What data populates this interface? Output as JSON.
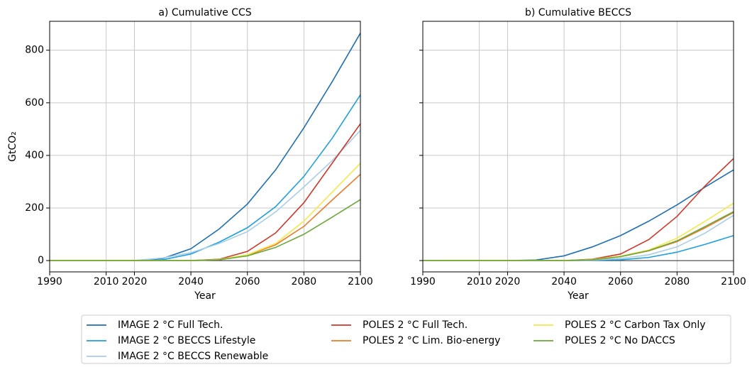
{
  "chart_data": [
    {
      "type": "line",
      "title": "a) Cumulative CCS",
      "x_label": "Year",
      "y_label": "GtCO₂",
      "x": [
        1990,
        2000,
        2010,
        2020,
        2030,
        2040,
        2050,
        2060,
        2070,
        2080,
        2090,
        2100
      ],
      "xlim": [
        1990,
        2100
      ],
      "xticks": [
        1990,
        2010,
        2020,
        2040,
        2060,
        2080,
        2100
      ],
      "ylim": [
        -43,
        910
      ],
      "yticks": [
        0,
        200,
        400,
        600,
        800
      ],
      "grid": true,
      "hline": 0,
      "series": [
        {
          "name": "IMAGE 2 °C Full Tech.",
          "color": "#1f6fb4",
          "values": [
            0,
            0,
            0,
            0,
            8,
            45,
            120,
            215,
            345,
            505,
            680,
            865
          ]
        },
        {
          "name": "IMAGE 2 °C BECCS Lifestyle",
          "color": "#1ea0e0",
          "values": [
            0,
            0,
            0,
            0,
            3,
            25,
            70,
            125,
            205,
            320,
            465,
            630
          ]
        },
        {
          "name": "IMAGE 2 °C BECCS Renewable",
          "color": "#a8cde8",
          "values": [
            0,
            0,
            0,
            0,
            10,
            30,
            65,
            110,
            185,
            280,
            380,
            495
          ]
        },
        {
          "name": "POLES 2 °C Full Tech.",
          "color": "#d03628",
          "values": [
            0,
            0,
            0,
            0,
            0,
            0,
            5,
            35,
            105,
            220,
            370,
            520
          ]
        },
        {
          "name": "POLES 2 °C Lim. Bio-energy",
          "color": "#ec7a2a",
          "values": [
            0,
            0,
            0,
            0,
            0,
            0,
            3,
            20,
            60,
            130,
            230,
            328
          ]
        },
        {
          "name": "POLES 2 °C Carbon Tax Only",
          "color": "#f5e84a",
          "values": [
            0,
            0,
            0,
            0,
            0,
            0,
            4,
            22,
            65,
            150,
            260,
            370
          ]
        },
        {
          "name": "POLES 2 °C No DACCS",
          "color": "#6aa83a",
          "values": [
            0,
            0,
            0,
            0,
            0,
            0,
            3,
            18,
            50,
            100,
            165,
            232
          ]
        }
      ]
    },
    {
      "type": "line",
      "title": "b) Cumulative BECCS",
      "x_label": "Year",
      "x": [
        1990,
        2000,
        2010,
        2020,
        2030,
        2040,
        2050,
        2060,
        2070,
        2080,
        2090,
        2100
      ],
      "xlim": [
        1990,
        2100
      ],
      "xticks": [
        1990,
        2010,
        2020,
        2040,
        2060,
        2080,
        2100
      ],
      "ylim": [
        -43,
        910
      ],
      "yticks": [
        0,
        200,
        400,
        600,
        800
      ],
      "grid": true,
      "hline": 0,
      "series": [
        {
          "color": "#1f6fb4",
          "values": [
            0,
            0,
            0,
            0,
            2,
            18,
            52,
            95,
            150,
            212,
            280,
            345
          ]
        },
        {
          "color": "#1ea0e0",
          "values": [
            0,
            0,
            0,
            0,
            0,
            0,
            1,
            3,
            12,
            32,
            62,
            95
          ]
        },
        {
          "color": "#a8cde8",
          "values": [
            0,
            0,
            0,
            0,
            0,
            0,
            2,
            8,
            22,
            52,
            105,
            172
          ]
        },
        {
          "color": "#d03628",
          "values": [
            0,
            0,
            0,
            0,
            0,
            0,
            5,
            25,
            80,
            168,
            285,
            388
          ]
        },
        {
          "color": "#ec7a2a",
          "values": [
            0,
            0,
            0,
            0,
            0,
            0,
            3,
            15,
            37,
            72,
            125,
            183
          ]
        },
        {
          "color": "#f5e84a",
          "values": [
            0,
            0,
            0,
            0,
            0,
            0,
            4,
            17,
            40,
            85,
            150,
            218
          ]
        },
        {
          "color": "#6aa83a",
          "values": [
            0,
            0,
            0,
            0,
            0,
            0,
            3,
            15,
            38,
            75,
            130,
            186
          ]
        }
      ]
    }
  ]
}
